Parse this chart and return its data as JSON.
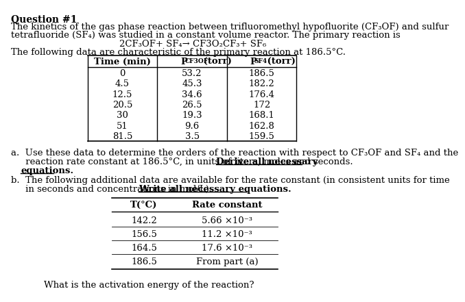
{
  "title": "Question #1",
  "intro_line1": "The kinetics of the gas phase reaction between trifluoromethyl hypofluorite (CF₃OF) and sulfur",
  "intro_line2": "tetrafluoride (SF₄) was studied in a constant volume reactor. The primary reaction is",
  "reaction": "2CF₃OF+ SF₄→ CF3O₂CF₃+ SF₆",
  "following_data": "The following data are characteristic of the primary reaction at 186.5°C.",
  "table1_col1": [
    "0",
    "4.5",
    "12.5",
    "20.5",
    "30",
    "51",
    "81.5"
  ],
  "table1_col2": [
    "53.2",
    "45.3",
    "34.6",
    "26.5",
    "19.3",
    "9.6",
    "3.5"
  ],
  "table1_col3": [
    "186.5",
    "182.2",
    "176.4",
    "172",
    "168.1",
    "162.8",
    "159.5"
  ],
  "part_a_line1": "a.  Use these data to determine the orders of the reaction with respect to CF₃OF and SF₄ and the",
  "part_a_line2a": "     reaction rate constant at 186.5°C, in units of liters, moles and seconds. ",
  "part_a_bold": "Derive all necessary",
  "part_a_line3_bold": "equations.",
  "part_b_line1": "b.  The following additional data are available for the rate constant (in consistent units for time",
  "part_b_line2a": "     in seconds and concentrations in mol/L). ",
  "part_b_bold": "Write all necessary equations.",
  "table2_col1": [
    "142.2",
    "156.5",
    "164.5",
    "186.5"
  ],
  "table2_col2": [
    "5.66 ×10⁻³",
    "11.2 ×10⁻³",
    "17.6 ×10⁻³",
    "From part (a)"
  ],
  "question": "What is the activation energy of the reaction?",
  "bg_color": "#ffffff",
  "text_color": "#000000"
}
